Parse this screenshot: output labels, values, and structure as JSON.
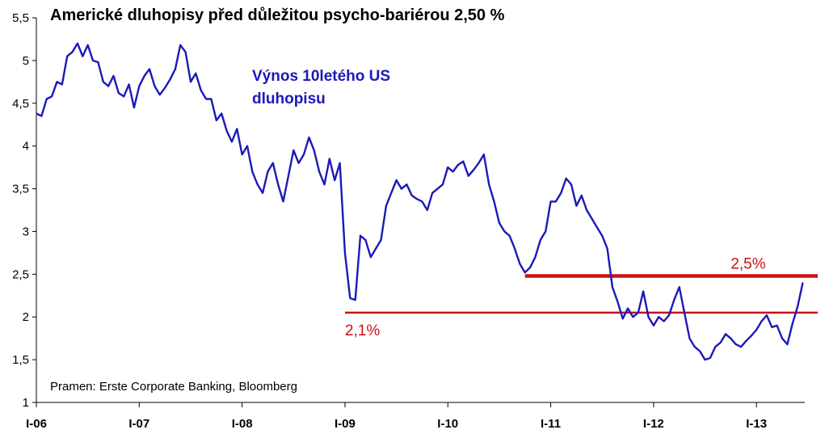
{
  "chart_data": {
    "type": "line",
    "title": "Americké dluhopisy před důležitou psycho-bariérou 2,50 %",
    "source": "Pramen: Erste Corporate Banking, Bloomberg",
    "series_label_lines": [
      "Výnos 10letého US",
      "dluhopisu"
    ],
    "ylim": [
      1,
      5.5
    ],
    "y_ticks": [
      1,
      1.5,
      2,
      2.5,
      3,
      3.5,
      4,
      4.5,
      5,
      5.5
    ],
    "y_tick_labels": [
      "1",
      "1,5",
      "2",
      "2,5",
      "3",
      "3,5",
      "4",
      "4,5",
      "5",
      "5,5"
    ],
    "x_ticks": [
      2006,
      2007,
      2008,
      2009,
      2010,
      2011,
      2012,
      2013
    ],
    "x_tick_labels": [
      "I-06",
      "I-07",
      "I-08",
      "I-09",
      "I-10",
      "I-11",
      "I-12",
      "I-13"
    ],
    "xlim": [
      2006,
      2013.47
    ],
    "grid": false,
    "colors": {
      "series": "#1a1ab8",
      "threshold": "#cc1111",
      "axis": "#000000"
    },
    "series": [
      {
        "x": [
          2006.0,
          2006.05,
          2006.1,
          2006.15,
          2006.2,
          2006.25,
          2006.3,
          2006.35,
          2006.4,
          2006.45,
          2006.5,
          2006.55,
          2006.6,
          2006.65,
          2006.7,
          2006.75,
          2006.8,
          2006.85,
          2006.9,
          2006.95,
          2007.0,
          2007.05,
          2007.1,
          2007.15,
          2007.2,
          2007.25,
          2007.3,
          2007.35,
          2007.4,
          2007.45,
          2007.5,
          2007.55,
          2007.6,
          2007.65,
          2007.7,
          2007.75,
          2007.8,
          2007.85,
          2007.9,
          2007.95,
          2008.0,
          2008.05,
          2008.1,
          2008.15,
          2008.2,
          2008.25,
          2008.3,
          2008.35,
          2008.4,
          2008.45,
          2008.5,
          2008.55,
          2008.6,
          2008.65,
          2008.7,
          2008.75,
          2008.8,
          2008.85,
          2008.9,
          2008.95,
          2009.0,
          2009.05,
          2009.1,
          2009.15,
          2009.2,
          2009.25,
          2009.3,
          2009.35,
          2009.4,
          2009.45,
          2009.5,
          2009.55,
          2009.6,
          2009.65,
          2009.7,
          2009.75,
          2009.8,
          2009.85,
          2009.9,
          2009.95,
          2010.0,
          2010.05,
          2010.1,
          2010.15,
          2010.2,
          2010.25,
          2010.3,
          2010.35,
          2010.4,
          2010.45,
          2010.5,
          2010.55,
          2010.6,
          2010.65,
          2010.7,
          2010.75,
          2010.8,
          2010.85,
          2010.9,
          2010.95,
          2011.0,
          2011.05,
          2011.1,
          2011.15,
          2011.2,
          2011.25,
          2011.3,
          2011.35,
          2011.4,
          2011.45,
          2011.5,
          2011.55,
          2011.6,
          2011.65,
          2011.7,
          2011.75,
          2011.8,
          2011.85,
          2011.9,
          2011.95,
          2012.0,
          2012.05,
          2012.1,
          2012.15,
          2012.2,
          2012.25,
          2012.3,
          2012.35,
          2012.4,
          2012.45,
          2012.5,
          2012.55,
          2012.6,
          2012.65,
          2012.7,
          2012.75,
          2012.8,
          2012.85,
          2012.9,
          2012.95,
          2013.0,
          2013.05,
          2013.1,
          2013.15,
          2013.2,
          2013.25,
          2013.3,
          2013.35,
          2013.4,
          2013.45
        ],
        "values": [
          4.38,
          4.35,
          4.55,
          4.58,
          4.75,
          4.72,
          5.05,
          5.1,
          5.2,
          5.05,
          5.18,
          5.0,
          4.98,
          4.75,
          4.7,
          4.82,
          4.62,
          4.58,
          4.72,
          4.45,
          4.7,
          4.82,
          4.9,
          4.7,
          4.6,
          4.68,
          4.78,
          4.9,
          5.18,
          5.1,
          4.75,
          4.85,
          4.65,
          4.55,
          4.55,
          4.3,
          4.38,
          4.18,
          4.05,
          4.2,
          3.9,
          4.0,
          3.7,
          3.55,
          3.45,
          3.7,
          3.8,
          3.55,
          3.35,
          3.65,
          3.95,
          3.8,
          3.9,
          4.1,
          3.95,
          3.7,
          3.55,
          3.85,
          3.6,
          3.8,
          2.75,
          2.22,
          2.2,
          2.95,
          2.9,
          2.7,
          2.8,
          2.9,
          3.3,
          3.45,
          3.6,
          3.5,
          3.55,
          3.42,
          3.38,
          3.35,
          3.25,
          3.45,
          3.5,
          3.55,
          3.75,
          3.7,
          3.78,
          3.82,
          3.65,
          3.72,
          3.8,
          3.9,
          3.55,
          3.35,
          3.1,
          3.0,
          2.95,
          2.8,
          2.62,
          2.52,
          2.58,
          2.7,
          2.9,
          3.0,
          3.35,
          3.35,
          3.45,
          3.62,
          3.55,
          3.3,
          3.42,
          3.25,
          3.15,
          3.05,
          2.95,
          2.8,
          2.35,
          2.18,
          1.98,
          2.1,
          2.0,
          2.05,
          2.3,
          2.0,
          1.9,
          2.0,
          1.95,
          2.02,
          2.2,
          2.35,
          2.05,
          1.75,
          1.65,
          1.6,
          1.5,
          1.52,
          1.65,
          1.7,
          1.8,
          1.75,
          1.68,
          1.65,
          1.72,
          1.78,
          1.85,
          1.95,
          2.02,
          1.88,
          1.9,
          1.75,
          1.68,
          1.92,
          2.12,
          2.4
        ]
      }
    ],
    "reference_lines": [
      {
        "value": 2.05,
        "label": "2,1%",
        "x_start": 2009.0,
        "x_end": 2013.47
      },
      {
        "value": 2.48,
        "label": "2,5%",
        "x_start": 2010.75,
        "x_end": 2013.47
      }
    ]
  }
}
